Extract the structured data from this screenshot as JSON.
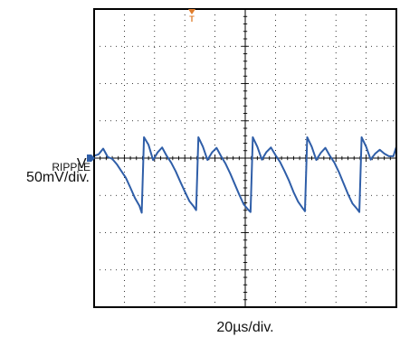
{
  "chart_data": {
    "type": "line",
    "x_divisions": 10,
    "y_divisions": 8,
    "grid": true,
    "series": [
      {
        "label": "V_RIPPLE",
        "color": "#2f5ea8",
        "points": [
          [
            0.0,
            0.06
          ],
          [
            0.03,
            0.1
          ],
          [
            0.06,
            0.25
          ],
          [
            0.09,
            0.03
          ],
          [
            0.12,
            -0.02
          ],
          [
            0.15,
            -0.16
          ],
          [
            0.18,
            -0.34
          ],
          [
            0.21,
            -0.52
          ],
          [
            0.24,
            -0.78
          ],
          [
            0.27,
            -1.05
          ],
          [
            0.3,
            -1.26
          ],
          [
            0.315,
            -1.44
          ],
          [
            0.33,
            0.55
          ],
          [
            0.36,
            0.35
          ],
          [
            0.39,
            -0.05
          ],
          [
            0.42,
            0.15
          ],
          [
            0.45,
            0.28
          ],
          [
            0.48,
            0.06
          ],
          [
            0.51,
            -0.12
          ],
          [
            0.54,
            -0.35
          ],
          [
            0.57,
            -0.62
          ],
          [
            0.6,
            -0.88
          ],
          [
            0.63,
            -1.13
          ],
          [
            0.66,
            -1.28
          ],
          [
            0.675,
            -1.37
          ],
          [
            0.69,
            0.55
          ],
          [
            0.72,
            0.3
          ],
          [
            0.75,
            -0.05
          ],
          [
            0.78,
            0.15
          ],
          [
            0.81,
            0.27
          ],
          [
            0.84,
            0.05
          ],
          [
            0.87,
            -0.15
          ],
          [
            0.9,
            -0.4
          ],
          [
            0.93,
            -0.68
          ],
          [
            0.96,
            -0.96
          ],
          [
            0.99,
            -1.22
          ],
          [
            1.02,
            -1.36
          ],
          [
            1.035,
            -1.42
          ],
          [
            1.05,
            0.55
          ],
          [
            1.08,
            0.3
          ],
          [
            1.11,
            -0.04
          ],
          [
            1.14,
            0.16
          ],
          [
            1.17,
            0.28
          ],
          [
            1.2,
            0.08
          ],
          [
            1.23,
            -0.1
          ],
          [
            1.26,
            -0.34
          ],
          [
            1.29,
            -0.6
          ],
          [
            1.32,
            -0.9
          ],
          [
            1.35,
            -1.15
          ],
          [
            1.38,
            -1.32
          ],
          [
            1.395,
            -1.4
          ],
          [
            1.41,
            0.55
          ],
          [
            1.44,
            0.3
          ],
          [
            1.47,
            -0.05
          ],
          [
            1.5,
            0.14
          ],
          [
            1.53,
            0.27
          ],
          [
            1.56,
            0.06
          ],
          [
            1.59,
            -0.12
          ],
          [
            1.62,
            -0.37
          ],
          [
            1.65,
            -0.66
          ],
          [
            1.68,
            -0.95
          ],
          [
            1.71,
            -1.2
          ],
          [
            1.74,
            -1.34
          ],
          [
            1.755,
            -1.42
          ],
          [
            1.77,
            0.55
          ],
          [
            1.8,
            0.3
          ],
          [
            1.83,
            -0.04
          ],
          [
            1.86,
            0.12
          ],
          [
            1.89,
            0.22
          ],
          [
            1.92,
            0.12
          ],
          [
            1.95,
            0.05
          ],
          [
            1.98,
            0.05
          ],
          [
            2.0,
            0.3
          ]
        ]
      }
    ]
  },
  "labels": {
    "v_main": "V",
    "v_sub": "RIPPLE",
    "v_scale": "50mV/div.",
    "t_scale": "20µs/div."
  },
  "markers": {
    "trigger_text": "T",
    "channel_color": "#2f5ea8",
    "trigger_color": "#e07d2c"
  }
}
